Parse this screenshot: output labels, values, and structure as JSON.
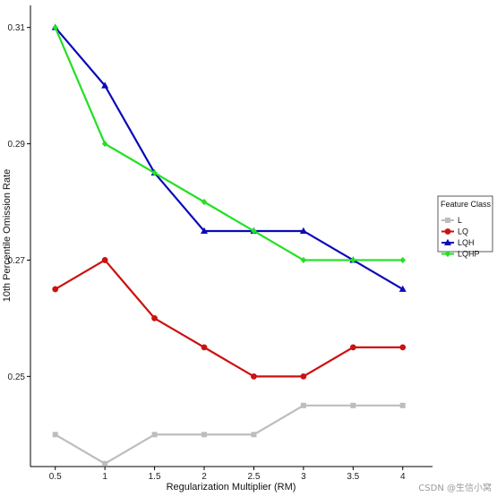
{
  "chart_data": {
    "type": "line",
    "x": [
      0.5,
      1,
      1.5,
      2,
      2.5,
      3,
      3.5,
      4
    ],
    "xticklabels": [
      "0.5",
      "1",
      "1.5",
      "2",
      "2.5",
      "3",
      "3.5",
      "4"
    ],
    "xlim": [
      0.25,
      4.3
    ],
    "ylim": [
      0.2345,
      0.3138
    ],
    "yticks": [
      0.25,
      0.27,
      0.29,
      0.31
    ],
    "yticklabels": [
      "0.25",
      "0.27",
      "0.29",
      "0.31"
    ],
    "xlabel": "Regularization Multiplier (RM)",
    "ylabel": "10th Percentile Omission Rate",
    "grid": false,
    "legend": {
      "title": "Feature Class",
      "position": "right"
    },
    "series": [
      {
        "name": "L",
        "color": "#bdbdbd",
        "marker": "square",
        "values": [
          0.24,
          0.235,
          0.24,
          0.24,
          0.24,
          0.245,
          0.245,
          0.245
        ]
      },
      {
        "name": "LQ",
        "color": "#cc1111",
        "marker": "circle",
        "values": [
          0.265,
          0.27,
          0.26,
          0.255,
          0.25,
          0.25,
          0.255,
          0.255
        ]
      },
      {
        "name": "LQH",
        "color": "#0a0ab8",
        "marker": "triangle",
        "values": [
          0.31,
          0.3,
          0.285,
          0.275,
          0.275,
          0.275,
          0.27,
          0.265
        ]
      },
      {
        "name": "LQHP",
        "color": "#22e022",
        "marker": "diamond",
        "values": [
          0.31,
          0.29,
          0.285,
          0.28,
          0.275,
          0.27,
          0.27,
          0.27
        ]
      }
    ]
  },
  "watermark": "CSDN @生信小窝"
}
